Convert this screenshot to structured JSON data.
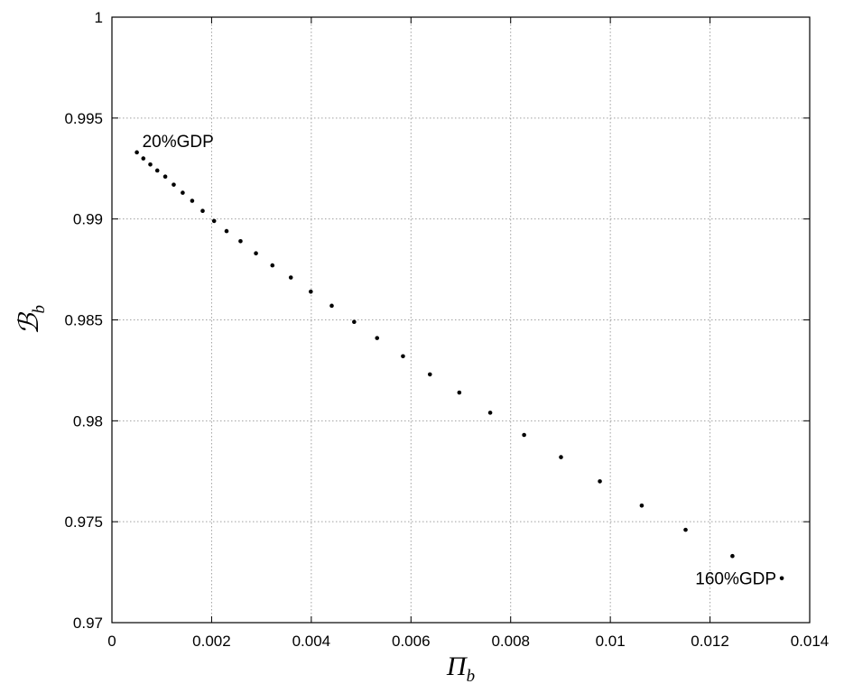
{
  "chart_data": {
    "type": "scatter",
    "xlabel": {
      "main": "Π",
      "sub": "b"
    },
    "ylabel": {
      "main": "ℬ",
      "sub": "b"
    },
    "xlim": [
      0,
      0.014
    ],
    "ylim": [
      0.97,
      1
    ],
    "xticks": [
      0,
      0.002,
      0.004,
      0.006,
      0.008,
      0.01,
      0.012,
      0.014
    ],
    "yticks": [
      0.97,
      0.975,
      0.98,
      0.985,
      0.99,
      0.995,
      1
    ],
    "xtick_labels": [
      "0",
      "0.002",
      "0.004",
      "0.006",
      "0.008",
      "0.01",
      "0.012",
      "0.014"
    ],
    "ytick_labels": [
      "0.97",
      "0.975",
      "0.98",
      "0.985",
      "0.99",
      "0.995",
      "1"
    ],
    "grid": true,
    "marker_color": "#000000",
    "series": [
      {
        "x": [
          0.0005,
          0.00063,
          0.00077,
          0.00091,
          0.00107,
          0.00124,
          0.00142,
          0.00161,
          0.00182,
          0.00205,
          0.0023,
          0.00258,
          0.00289,
          0.00322,
          0.00359,
          0.00399,
          0.00441,
          0.00486,
          0.00532,
          0.00584,
          0.00638,
          0.00697,
          0.00759,
          0.00827,
          0.00901,
          0.00979,
          0.01063,
          0.01151,
          0.01245,
          0.01344
        ],
        "y": [
          0.9933,
          0.993,
          0.9927,
          0.9924,
          0.9921,
          0.9917,
          0.9913,
          0.9909,
          0.9904,
          0.9899,
          0.9894,
          0.9889,
          0.9883,
          0.9877,
          0.9871,
          0.9864,
          0.9857,
          0.9849,
          0.9841,
          0.9832,
          0.9823,
          0.9814,
          0.9804,
          0.9793,
          0.9782,
          0.977,
          0.9758,
          0.9746,
          0.9733,
          0.9722
        ]
      }
    ],
    "annotations": [
      {
        "text": "20%GDP",
        "x": 0.0005,
        "y": 0.9933
      },
      {
        "text": "160%GDP",
        "x": 0.01344,
        "y": 0.9732
      }
    ]
  }
}
